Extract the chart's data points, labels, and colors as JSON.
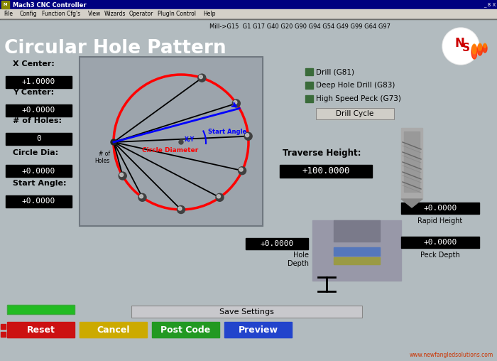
{
  "title": "Circular Hole Pattern",
  "subtitle": "Mill->G15  G1 G17 G40 G20 G90 G94 G54 G49 G99 G64 G97",
  "window_title": "Mach3 CNC Controller",
  "bg_color": "#b2bbbf",
  "titlebar_color": "#000080",
  "menubar_color": "#d4d0c8",
  "panel_bg": "#9aa0a8",
  "left_labels": [
    "X Center:",
    "Y Center:",
    "# of Holes:",
    "Circle Dia:",
    "Start Angle:"
  ],
  "left_values": [
    "+1.0000",
    "+0.0000",
    "0",
    "+0.0000",
    "+0.0000"
  ],
  "drill_options": [
    "Drill (G81)",
    "Deep Hole Drill (G83)",
    "High Speed Peck (G73)"
  ],
  "traverse_label": "Traverse Height:",
  "traverse_value": "+100.0000",
  "rapid_label": "Rapid Height",
  "rapid_value": "+0.0000",
  "hole_depth_label": "Hole\nDepth",
  "hole_depth_value": "+0.0000",
  "peck_depth_label": "Peck Depth",
  "peck_depth_value": "+0.0000",
  "button_reset": "Reset",
  "button_cancel": "Cancel",
  "button_post": "Post Code",
  "button_preview": "Preview",
  "button_save": "Save Settings",
  "website": "www.newfangledsolutions.com",
  "menu_items": [
    "File",
    "Config",
    "Function Cfg's",
    "View",
    "Wizards",
    "Operator",
    "PlugIn Control",
    "Help"
  ],
  "circle_diameter_label": "Circle Diameter",
  "start_angle_label": "Start Angle",
  "xy_label": "X,Y",
  "num_holes_label": "# of\nHoles"
}
